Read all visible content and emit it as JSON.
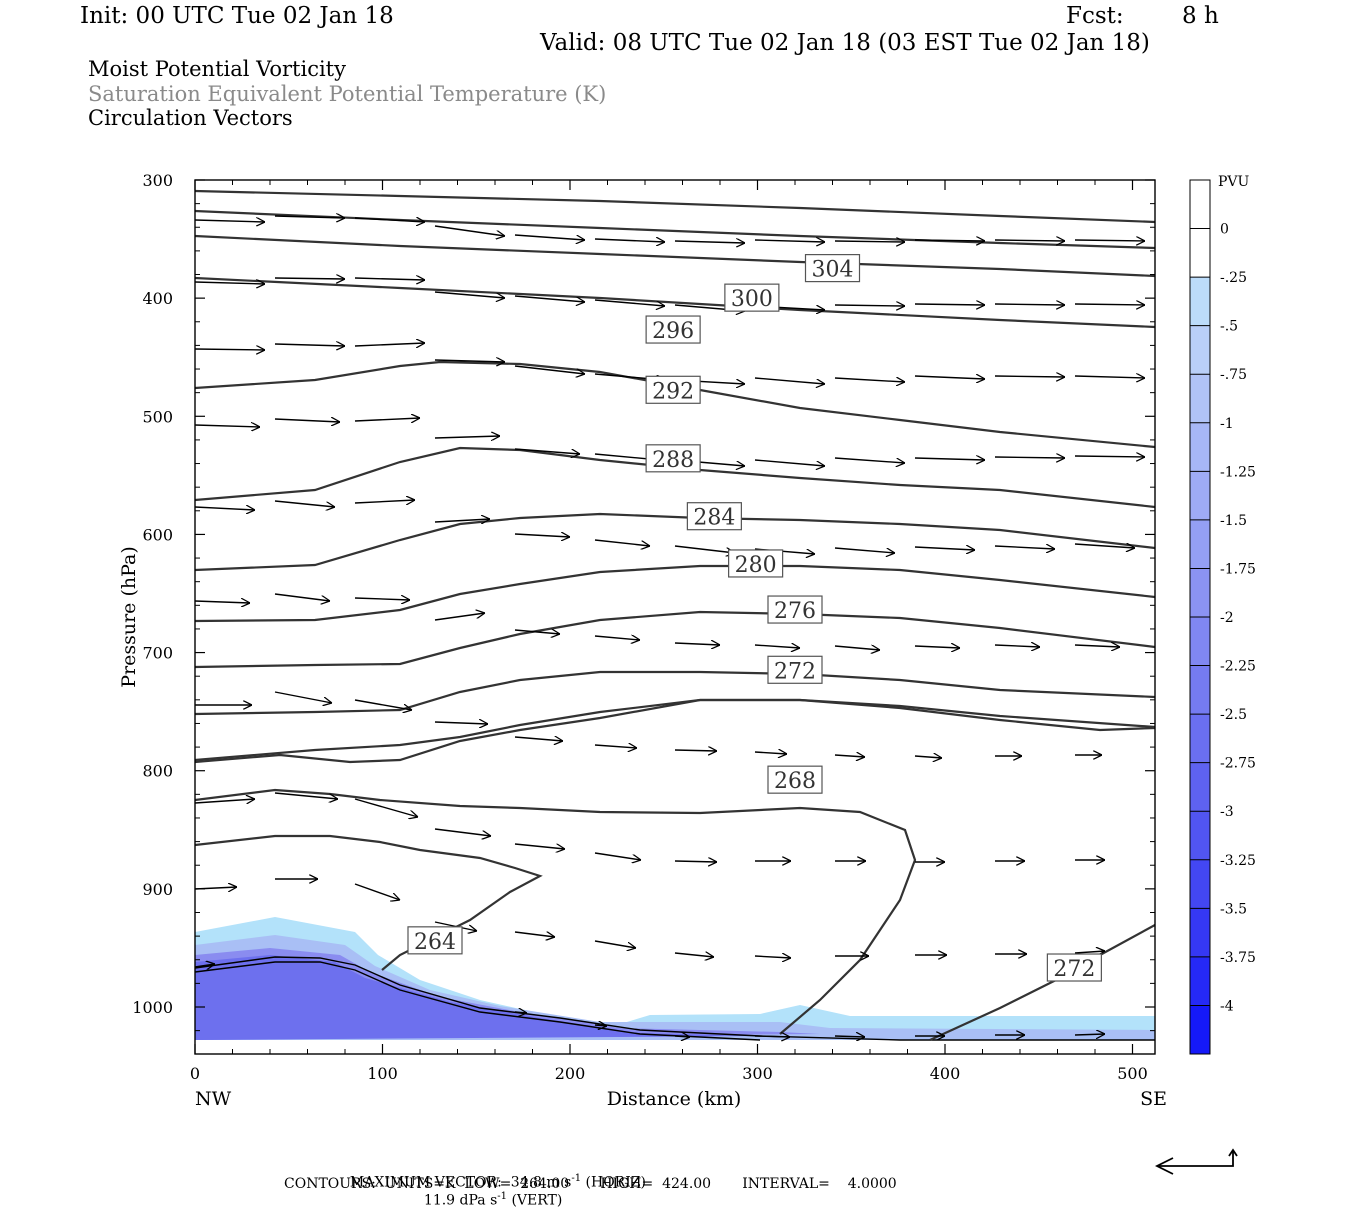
{
  "header": {
    "init": "Init: 00 UTC Tue 02 Jan 18",
    "fcst_label": "Fcst:",
    "fcst_value": "8 h",
    "valid": "Valid: 08 UTC Tue 02 Jan 18 (03 EST Tue 02 Jan 18)"
  },
  "titles": {
    "line1": "Moist Potential Vorticity",
    "line2": "Saturation Equivalent Potential Temperature (K)",
    "line3": "Circulation Vectors"
  },
  "colors": {
    "contour": "#333333",
    "shade_light": "#b3e2fa",
    "shade_mid": "#a9bff5",
    "shade_dark": "#7a7af0",
    "grey_title": "#8a8a8a"
  },
  "footer": {
    "max_vector": "MAXIMUM VECTOR:  34.8 m s",
    "max_vector_horiz": "(HORIZ)",
    "max_vector_vert_value": "11.9 dPa s",
    "max_vector_vert": "(VERT)",
    "exp": "-1",
    "contours": "CONTOURS:  UNITS=K  LOW=  264.00       HIGH=  424.00       INTERVAL=    4.0000"
  },
  "chart_data": {
    "type": "cross-section",
    "xlabel": "Distance (km)",
    "ylabel": "Pressure (hPa)",
    "xlim": [
      0,
      512
    ],
    "ylim": [
      1040,
      300
    ],
    "x_ticks": [
      0,
      100,
      200,
      300,
      400,
      500
    ],
    "y_ticks": [
      300,
      400,
      500,
      600,
      700,
      800,
      900,
      1000
    ],
    "x_end_labels": {
      "left": "NW",
      "right": "SE"
    },
    "contour_labels": [
      {
        "text": "304",
        "x": 340,
        "p": 375
      },
      {
        "text": "300",
        "x": 297,
        "p": 400
      },
      {
        "text": "296",
        "x": 255,
        "p": 427
      },
      {
        "text": "292",
        "x": 255,
        "p": 478
      },
      {
        "text": "288",
        "x": 255,
        "p": 536
      },
      {
        "text": "284",
        "x": 277,
        "p": 585
      },
      {
        "text": "280",
        "x": 299,
        "p": 625
      },
      {
        "text": "276",
        "x": 320,
        "p": 664
      },
      {
        "text": "272",
        "x": 320,
        "p": 715
      },
      {
        "text": "268",
        "x": 320,
        "p": 808
      },
      {
        "text": "264",
        "x": 128,
        "p": 944
      },
      {
        "text": "272",
        "x": 469,
        "p": 967
      }
    ],
    "colorbar": {
      "units": "PVU",
      "levels": [
        "0",
        "-.25",
        "-.5",
        "-.75",
        "-1",
        "-1.25",
        "-1.5",
        "-1.75",
        "-2",
        "-2.25",
        "-2.5",
        "-2.75",
        "-3",
        "-3.25",
        "-3.5",
        "-3.75",
        "-4"
      ],
      "colors": [
        "#ffffff",
        "#ffffff",
        "#b3e2fa",
        "#bcdcfa",
        "#b9cff8",
        "#b0c3f7",
        "#a7b7f6",
        "#9eabf5",
        "#949ff4",
        "#8b93f3",
        "#8087f2",
        "#757bf1",
        "#6a6ff1",
        "#5e62f1",
        "#5155f2",
        "#4347f3",
        "#3538f4",
        "#2529f6",
        "#1519f8",
        "#0509fb",
        "#0000ff"
      ]
    }
  }
}
